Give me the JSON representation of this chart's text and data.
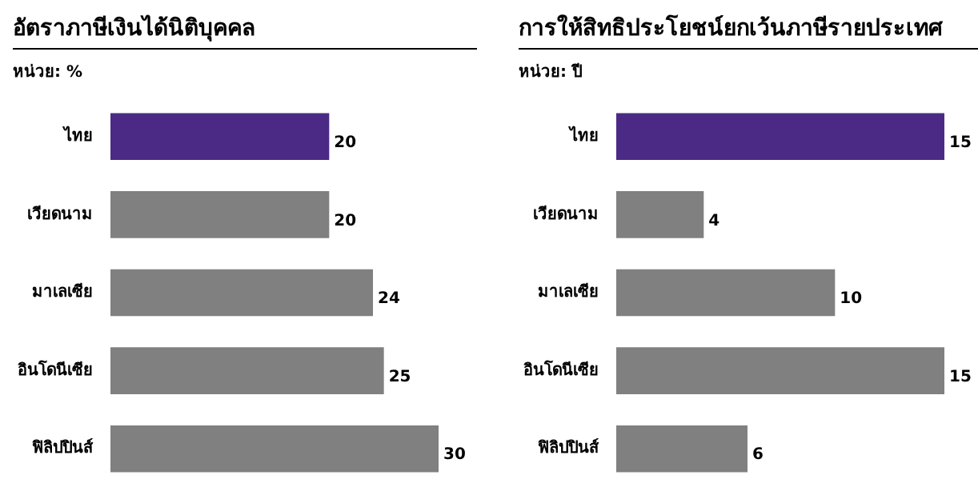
{
  "chart_data": [
    {
      "type": "bar",
      "orientation": "horizontal",
      "title": "อัตราภาษีเงินได้นิติบุคคล",
      "subtitle": "หน่วย: %",
      "categories": [
        "ไทย",
        "เวียดนาม",
        "มาเลเซีย",
        "อินโดนีเซีย",
        "ฟิลิปปินส์"
      ],
      "values": [
        20,
        20,
        24,
        25,
        30
      ],
      "colors": [
        "#4b2a86",
        "#808080",
        "#808080",
        "#808080",
        "#808080"
      ],
      "data_labels": true,
      "tick_labels": "y"
    },
    {
      "type": "bar",
      "orientation": "horizontal",
      "title": "การให้สิทธิประโยชน์ยกเว้นภาษีรายประเทศ",
      "subtitle": "หน่วย: ปี",
      "categories": [
        "ไทย",
        "เวียดนาม",
        "มาเลเซีย",
        "อินโดนีเซีย",
        "ฟิลิปปินส์"
      ],
      "values": [
        15,
        4,
        10,
        15,
        6
      ],
      "colors": [
        "#4b2a86",
        "#808080",
        "#808080",
        "#808080",
        "#808080"
      ],
      "data_labels": true,
      "tick_labels": "y"
    }
  ]
}
